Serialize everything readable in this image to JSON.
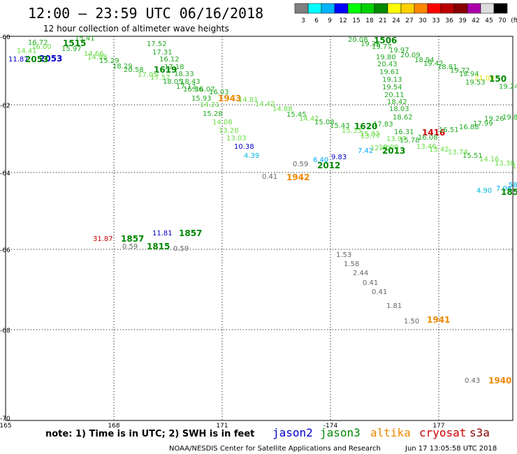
{
  "title": "12:00 – 23:59 UTC 06/16/2018",
  "subtitle": "12 hour collection of altimeter wave heights",
  "colorbar": {
    "colors": [
      "#808080",
      "#00ffff",
      "#00b4ff",
      "#0000ff",
      "#00ff00",
      "#00d000",
      "#008800",
      "#ffff00",
      "#ffd000",
      "#ff8800",
      "#ff0000",
      "#bb0000",
      "#880000",
      "#aa00aa",
      "#dddddd",
      "#000000"
    ],
    "labels": [
      "3",
      "6",
      "9",
      "12",
      "15",
      "18",
      "21",
      "24",
      "27",
      "30",
      "33",
      "36",
      "39",
      "42",
      "45",
      "70",
      "(ft)"
    ]
  },
  "lat_labels": [
    "-60",
    "-62",
    "-64",
    "-66",
    "-68",
    "-70"
  ],
  "lon_labels": [
    "165",
    "168",
    "171",
    "-174",
    "177"
  ],
  "satellites": [
    {
      "name": "jason2",
      "color": "#0000cc"
    },
    {
      "name": "jason3",
      "color": "#008800"
    },
    {
      "name": "altika",
      "color": "#ee8800"
    },
    {
      "name": "cryosat",
      "color": "#cc0000"
    },
    {
      "name": "s3a",
      "color": "#880000"
    }
  ],
  "note": "note: 1) Time is in UTC; 2) SWH is in feet",
  "credit": "NOAA/NESDIS Center for Satellite Applications and Research",
  "timestamp": "Jun 17 13:05:58 UTC 2018",
  "observations": [
    {
      "t": "16.72",
      "c": "#22aa22"
    },
    {
      "t": "14.41",
      "c": "#66dd44"
    },
    {
      "t": "15.41",
      "c": "#22aa22"
    },
    {
      "t": "1515",
      "c": "#008800",
      "time": true
    },
    {
      "t": "16.00",
      "c": "#66dd44"
    },
    {
      "t": "15.97",
      "c": "#22aa22"
    },
    {
      "t": "14.66",
      "c": "#66dd44"
    },
    {
      "t": "11.87",
      "c": "#0000cc"
    },
    {
      "t": "2053",
      "c": "#0000cc",
      "time": true
    },
    {
      "t": "2053",
      "c": "#008800",
      "time": true
    },
    {
      "t": "14.98",
      "c": "#66dd44"
    },
    {
      "t": "17.52",
      "c": "#22aa22"
    },
    {
      "t": "17.31",
      "c": "#22aa22"
    },
    {
      "t": "16.12",
      "c": "#22aa22"
    },
    {
      "t": "15.29",
      "c": "#22aa22"
    },
    {
      "t": "18.29",
      "c": "#22aa22"
    },
    {
      "t": "17.18",
      "c": "#22aa22"
    },
    {
      "t": "20.58",
      "c": "#22aa22"
    },
    {
      "t": "1619",
      "c": "#008800",
      "time": true
    },
    {
      "t": "17.05",
      "c": "#66dd44"
    },
    {
      "t": "17.57",
      "c": "#66dd44"
    },
    {
      "t": "18.33",
      "c": "#22aa22"
    },
    {
      "t": "18.05",
      "c": "#22aa22"
    },
    {
      "t": "18.43",
      "c": "#22aa22"
    },
    {
      "t": "17.12",
      "c": "#22aa22"
    },
    {
      "t": "16.86",
      "c": "#22aa22"
    },
    {
      "t": "16.07",
      "c": "#22aa22"
    },
    {
      "t": "16.03",
      "c": "#22aa22"
    },
    {
      "t": "1943",
      "c": "#ee8800",
      "time": true
    },
    {
      "t": "15.93",
      "c": "#22aa22"
    },
    {
      "t": "14.81",
      "c": "#66dd44"
    },
    {
      "t": "14.42",
      "c": "#66dd44"
    },
    {
      "t": "14.88",
      "c": "#66dd44"
    },
    {
      "t": "15.28",
      "c": "#22aa22"
    },
    {
      "t": "14.21",
      "c": "#66dd44"
    },
    {
      "t": "15.45",
      "c": "#22aa22"
    },
    {
      "t": "14.42",
      "c": "#66dd44"
    },
    {
      "t": "14.08",
      "c": "#66dd44"
    },
    {
      "t": "13.20",
      "c": "#66dd44"
    },
    {
      "t": "15.08",
      "c": "#22aa22"
    },
    {
      "t": "13.03",
      "c": "#66dd44"
    },
    {
      "t": "10.38",
      "c": "#0000cc"
    },
    {
      "t": "4.39",
      "c": "#00bbdd"
    },
    {
      "t": "0.59",
      "c": "#666666"
    },
    {
      "t": "6.40",
      "c": "#00aaff"
    },
    {
      "t": "9.83",
      "c": "#0000cc"
    },
    {
      "t": "2012",
      "c": "#008800",
      "time": true
    },
    {
      "t": "0.41",
      "c": "#666666"
    },
    {
      "t": "1942",
      "c": "#ee8800",
      "time": true
    },
    {
      "t": "20.08",
      "c": "#22aa22"
    },
    {
      "t": "1506",
      "c": "#008800",
      "time": true
    },
    {
      "t": "19.36",
      "c": "#22aa22"
    },
    {
      "t": "19.77",
      "c": "#22aa22"
    },
    {
      "t": "19.97",
      "c": "#22aa22"
    },
    {
      "t": "19.80",
      "c": "#22aa22"
    },
    {
      "t": "20.09",
      "c": "#22aa22"
    },
    {
      "t": "18.94",
      "c": "#22aa22"
    },
    {
      "t": "20.43",
      "c": "#22aa22"
    },
    {
      "t": "19.42",
      "c": "#22aa22"
    },
    {
      "t": "19.61",
      "c": "#22aa22"
    },
    {
      "t": "18.81",
      "c": "#22aa22"
    },
    {
      "t": "19.72",
      "c": "#22aa22"
    },
    {
      "t": "19.13",
      "c": "#22aa22"
    },
    {
      "t": "18.94",
      "c": "#22aa22"
    },
    {
      "t": "21.08",
      "c": "#dddd00"
    },
    {
      "t": "19.54",
      "c": "#22aa22"
    },
    {
      "t": "19.53",
      "c": "#22aa22"
    },
    {
      "t": "150",
      "c": "#008800",
      "time": true
    },
    {
      "t": "20.11",
      "c": "#22aa22"
    },
    {
      "t": "19.24",
      "c": "#22aa22"
    },
    {
      "t": "18.42",
      "c": "#22aa22"
    },
    {
      "t": "18.03",
      "c": "#22aa22"
    },
    {
      "t": "18.62",
      "c": "#22aa22"
    },
    {
      "t": "17.83",
      "c": "#22aa22"
    },
    {
      "t": "15.43",
      "c": "#22aa22"
    },
    {
      "t": "1620",
      "c": "#008800",
      "time": true
    },
    {
      "t": "15.33",
      "c": "#66dd44"
    },
    {
      "t": "16.31",
      "c": "#22aa22"
    },
    {
      "t": "1416",
      "c": "#cc0000",
      "time": true
    },
    {
      "t": "16.51",
      "c": "#22aa22"
    },
    {
      "t": "16.88",
      "c": "#22aa22"
    },
    {
      "t": "17.99",
      "c": "#22aa22"
    },
    {
      "t": "19.26",
      "c": "#22aa22"
    },
    {
      "t": "19.8",
      "c": "#22aa22"
    },
    {
      "t": "15.82",
      "c": "#66dd44"
    },
    {
      "t": "13.77",
      "c": "#66dd44"
    },
    {
      "t": "13.97",
      "c": "#66dd44"
    },
    {
      "t": "15.78",
      "c": "#22aa22"
    },
    {
      "t": "16.08",
      "c": "#22aa22"
    },
    {
      "t": "7.42",
      "c": "#00aaff"
    },
    {
      "t": "12.40",
      "c": "#66dd44"
    },
    {
      "t": "13.00",
      "c": "#66dd44"
    },
    {
      "t": "2013",
      "c": "#008800",
      "time": true
    },
    {
      "t": "13.46",
      "c": "#66dd44"
    },
    {
      "t": "13.42",
      "c": "#66dd44"
    },
    {
      "t": "13.74",
      "c": "#66dd44"
    },
    {
      "t": "15.51",
      "c": "#22aa22"
    },
    {
      "t": "14.16",
      "c": "#66dd44"
    },
    {
      "t": "13.38",
      "c": "#66dd44"
    },
    {
      "t": "14",
      "c": "#66dd44"
    },
    {
      "t": "4.90",
      "c": "#00bbdd"
    },
    {
      "t": "7.06",
      "c": "#00aaff"
    },
    {
      "t": "58",
      "c": "#00aaff"
    },
    {
      "t": "185",
      "c": "#008800",
      "time": true
    },
    {
      "t": "31.87",
      "c": "#cc0000"
    },
    {
      "t": "1857",
      "c": "#008800",
      "time": true
    },
    {
      "t": "11.81",
      "c": "#0000cc"
    },
    {
      "t": "1857",
      "c": "#008800",
      "time": true
    },
    {
      "t": "0.59",
      "c": "#666666"
    },
    {
      "t": "1815",
      "c": "#008800",
      "time": true
    },
    {
      "t": "0.59",
      "c": "#666666"
    },
    {
      "t": "1.53",
      "c": "#666666"
    },
    {
      "t": "1.58",
      "c": "#666666"
    },
    {
      "t": "2.44",
      "c": "#666666"
    },
    {
      "t": "0.41",
      "c": "#666666"
    },
    {
      "t": "0.41",
      "c": "#666666"
    },
    {
      "t": "1.81",
      "c": "#666666"
    },
    {
      "t": "1.50",
      "c": "#666666"
    },
    {
      "t": "1941",
      "c": "#ee8800",
      "time": true
    },
    {
      "t": "0.43",
      "c": "#666666"
    },
    {
      "t": "1940",
      "c": "#ee8800",
      "time": true
    }
  ]
}
